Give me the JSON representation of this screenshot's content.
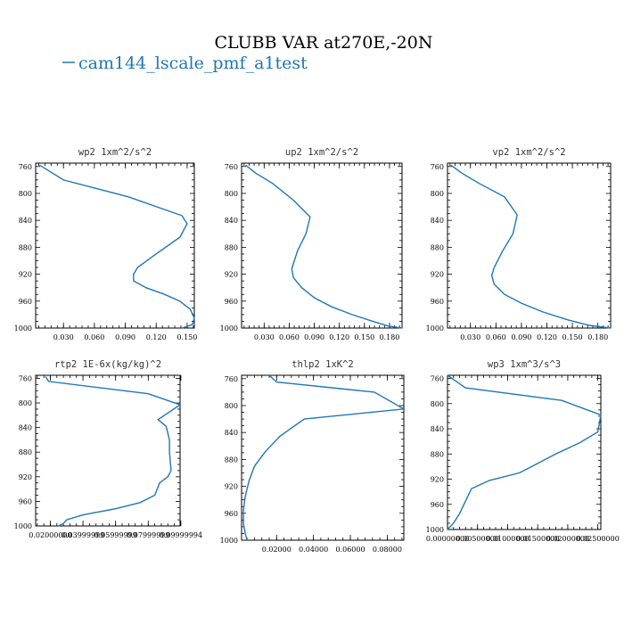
{
  "figure": {
    "title": "CLUBB VAR at270E,-20N",
    "legend_label": "cam144_lscale_pmf_a1test",
    "legend_color": "#1f77b4"
  },
  "chart_data": [
    {
      "type": "line",
      "title": "wp2   1xm^2/s^2",
      "xlim": [
        0.003,
        0.157
      ],
      "ylim": [
        1000,
        755
      ],
      "yticks": [
        760,
        800,
        840,
        880,
        920,
        960,
        1000
      ],
      "xticks": [
        0.03,
        0.06,
        0.09,
        0.12,
        0.15
      ],
      "xtick_labels": [
        "0.030",
        "0.060",
        "0.090",
        "0.120",
        "0.150"
      ],
      "series": [
        {
          "x": [
            0.007,
            0.03,
            0.093,
            0.145,
            0.15,
            0.143,
            0.118,
            0.102,
            0.098,
            0.098,
            0.11,
            0.128,
            0.143,
            0.153,
            0.157,
            0.155,
            0.145
          ],
          "y": [
            758,
            780,
            805,
            833,
            845,
            865,
            892,
            910,
            920,
            930,
            940,
            950,
            960,
            972,
            985,
            995,
            1000
          ]
        }
      ]
    },
    {
      "type": "line",
      "title": "up2   1xm^2/s^2",
      "xlim": [
        0.003,
        0.195
      ],
      "ylim": [
        1000,
        755
      ],
      "yticks": [
        760,
        800,
        840,
        880,
        920,
        960,
        1000
      ],
      "xticks": [
        0.03,
        0.06,
        0.09,
        0.12,
        0.15,
        0.18
      ],
      "xtick_labels": [
        "0.030",
        "0.060",
        "0.090",
        "0.120",
        "0.150",
        "0.180"
      ],
      "series": [
        {
          "x": [
            0.008,
            0.02,
            0.04,
            0.065,
            0.085,
            0.08,
            0.07,
            0.063,
            0.065,
            0.075,
            0.09,
            0.11,
            0.135,
            0.16,
            0.178,
            0.195
          ],
          "y": [
            758,
            770,
            785,
            810,
            835,
            860,
            885,
            912,
            925,
            940,
            955,
            968,
            980,
            990,
            997,
            1000
          ]
        }
      ]
    },
    {
      "type": "line",
      "title": "vp2   1xm^2/s^2",
      "xlim": [
        0.003,
        0.195
      ],
      "ylim": [
        1000,
        755
      ],
      "yticks": [
        760,
        800,
        840,
        880,
        920,
        960,
        1000
      ],
      "xticks": [
        0.03,
        0.06,
        0.09,
        0.12,
        0.15,
        0.18
      ],
      "xtick_labels": [
        "0.030",
        "0.060",
        "0.090",
        "0.120",
        "0.150",
        "0.180"
      ],
      "series": [
        {
          "x": [
            0.007,
            0.02,
            0.04,
            0.07,
            0.085,
            0.08,
            0.068,
            0.058,
            0.055,
            0.058,
            0.07,
            0.09,
            0.115,
            0.145,
            0.17,
            0.195
          ],
          "y": [
            758,
            770,
            785,
            805,
            832,
            860,
            885,
            910,
            922,
            935,
            950,
            963,
            976,
            988,
            996,
            1000
          ]
        }
      ]
    },
    {
      "type": "line",
      "title": "rtp2   1E-6x(kg/kg)^2",
      "xlim": [
        0.011,
        0.0995
      ],
      "ylim": [
        1000,
        755
      ],
      "yticks": [
        760,
        800,
        840,
        880,
        920,
        960,
        1000
      ],
      "xticks": [
        0.02,
        0.04,
        0.06,
        0.08,
        0.1
      ],
      "xtick_labels": [
        "0.02000000",
        "0.03999999",
        "0.05999999",
        "0.07999999",
        "0.09999994"
      ],
      "series": [
        {
          "x": [
            0.017,
            0.019,
            0.08,
            0.0995,
            0.086,
            0.091,
            0.093,
            0.093,
            0.094,
            0.092,
            0.087,
            0.084,
            0.075,
            0.06,
            0.04,
            0.03,
            0.028,
            0.025
          ],
          "y": [
            757,
            765,
            785,
            803,
            827,
            838,
            860,
            880,
            910,
            920,
            930,
            950,
            962,
            972,
            982,
            990,
            996,
            1000
          ]
        }
      ]
    },
    {
      "type": "line",
      "title": "thlp2   1xK^2",
      "xlim": [
        0.001,
        0.089
      ],
      "ylim": [
        1000,
        755
      ],
      "yticks": [
        760,
        800,
        840,
        880,
        920,
        960,
        1000
      ],
      "xticks": [
        0.02,
        0.04,
        0.06,
        0.08
      ],
      "xtick_labels": [
        "0.02000",
        "0.04000",
        "0.06000",
        "0.08000"
      ],
      "series": [
        {
          "x": [
            0.016,
            0.02,
            0.073,
            0.089,
            0.035,
            0.022,
            0.014,
            0.008,
            0.005,
            0.003,
            0.002,
            0.002,
            0.003,
            0.004
          ],
          "y": [
            755,
            765,
            780,
            805,
            820,
            845,
            868,
            890,
            912,
            935,
            955,
            975,
            990,
            1000
          ]
        }
      ]
    },
    {
      "type": "line",
      "title": "wp3   1xm^3/s^3",
      "xlim": [
        0.0,
        0.0255
      ],
      "ylim": [
        1000,
        755
      ],
      "yticks": [
        760,
        800,
        840,
        880,
        920,
        960,
        1000
      ],
      "xticks": [
        0.0,
        0.005,
        0.01,
        0.015,
        0.02,
        0.025
      ],
      "xtick_labels": [
        "0.00000000",
        "0.00500000",
        "0.01000000",
        "0.01500000",
        "0.02000000",
        "0.02500000"
      ],
      "series": [
        {
          "x": [
            0.0,
            0.003,
            0.019,
            0.0255,
            0.025,
            0.022,
            0.018,
            0.015,
            0.012,
            0.007,
            0.004,
            0.003,
            0.002,
            0.001,
            0.0
          ],
          "y": [
            755,
            775,
            795,
            818,
            845,
            862,
            880,
            895,
            910,
            922,
            935,
            955,
            975,
            990,
            1000
          ]
        }
      ]
    }
  ]
}
